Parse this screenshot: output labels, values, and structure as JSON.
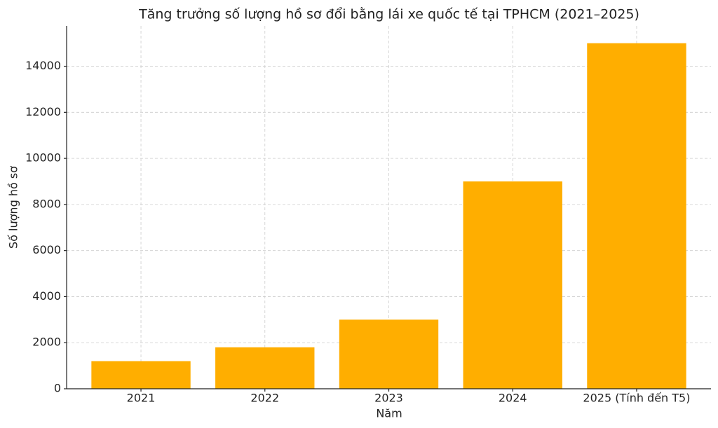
{
  "chart_data": {
    "type": "bar",
    "title": "Tăng trưởng số lượng hồ sơ đổi bằng lái xe quốc tế tại TPHCM (2021–2025)",
    "x_label": "Năm",
    "y_label": "Số lượng hồ sơ",
    "categories": [
      "2021",
      "2022",
      "2023",
      "2024",
      "2025 (Tính đến T5)"
    ],
    "values": [
      1200,
      1800,
      3000,
      9000,
      15000
    ],
    "color": "#ffae00",
    "ylim": [
      0,
      15750
    ],
    "yticks": [
      0,
      2000,
      4000,
      6000,
      8000,
      10000,
      12000,
      14000
    ],
    "grid": true
  }
}
